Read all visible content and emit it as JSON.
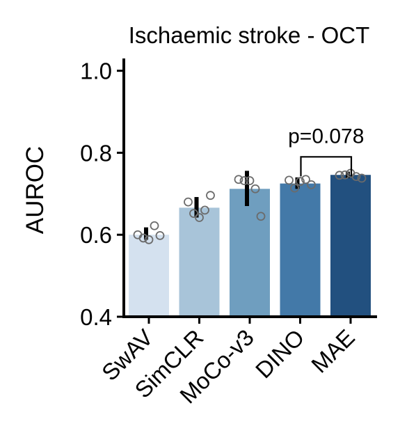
{
  "chart_data": {
    "type": "bar",
    "title": "Ischaemic stroke - OCT",
    "xlabel": "",
    "ylabel": "AUROC",
    "ylim": [
      0.4,
      1.03
    ],
    "yticks": [
      "0.4",
      "0.6",
      "0.8",
      "1.0"
    ],
    "ytick_values": [
      0.4,
      0.6,
      0.8,
      1.0
    ],
    "categories": [
      "SwAV",
      "SimCLR",
      "MoCo-v3",
      "DINO",
      "MAE"
    ],
    "values": [
      0.6,
      0.666,
      0.712,
      0.725,
      0.746
    ],
    "error": [
      [
        0.588,
        0.618
      ],
      [
        0.642,
        0.692
      ],
      [
        0.67,
        0.756
      ],
      [
        0.712,
        0.74
      ],
      [
        0.738,
        0.754
      ]
    ],
    "points": [
      [
        0.6,
        0.592,
        0.588,
        0.622,
        0.598
      ],
      [
        0.68,
        0.652,
        0.642,
        0.66,
        0.696
      ],
      [
        0.735,
        0.732,
        0.732,
        0.712,
        0.645
      ],
      [
        0.733,
        0.714,
        0.73,
        0.735,
        0.722
      ],
      [
        0.745,
        0.746,
        0.75,
        0.742,
        0.738
      ]
    ],
    "colors": [
      "#d4e1ef",
      "#a8c4d9",
      "#6f9ebf",
      "#4379a8",
      "#22507f"
    ],
    "grid": false,
    "annotation": {
      "text": "p=0.078",
      "from_category": 3,
      "to_category": 4,
      "y": 0.79
    }
  }
}
